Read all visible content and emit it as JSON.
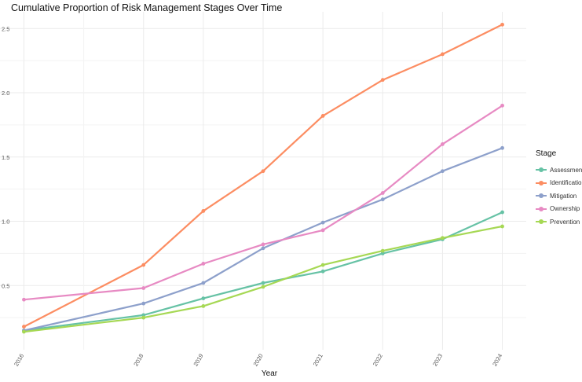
{
  "chart_data": {
    "type": "line",
    "title": "Cumulative Proportion of Risk Management Stages Over Time",
    "xlabel": "Year",
    "ylabel": "",
    "x": [
      2016,
      2018,
      2019,
      2020,
      2021,
      2022,
      2023,
      2024
    ],
    "x_tick_labels": [
      "2016",
      "2018",
      "2019",
      "2020",
      "2021",
      "2022",
      "2023",
      "2024"
    ],
    "y_tick_labels": [
      "0.5",
      "1.0",
      "1.5",
      "2.0",
      "2.5"
    ],
    "y_ticks": [
      0.5,
      1.0,
      1.5,
      2.0,
      2.5
    ],
    "ylim": [
      0.0,
      2.63
    ],
    "grid": true,
    "legend_title": "Stage",
    "legend_position": "right",
    "series": [
      {
        "name": "Assessment",
        "color": "#66c2a5",
        "values": [
          0.15,
          0.27,
          0.4,
          0.52,
          0.61,
          0.75,
          0.86,
          1.07
        ]
      },
      {
        "name": "Identification",
        "color": "#fc8d62",
        "values": [
          0.18,
          0.66,
          1.08,
          1.39,
          1.82,
          2.1,
          2.3,
          2.53
        ]
      },
      {
        "name": "Mitigation",
        "color": "#8da0cb",
        "values": [
          0.15,
          0.36,
          0.52,
          0.79,
          0.99,
          1.17,
          1.39,
          1.57
        ]
      },
      {
        "name": "Ownership",
        "color": "#e78ac3",
        "values": [
          0.39,
          0.48,
          0.67,
          0.82,
          0.93,
          1.22,
          1.6,
          1.9
        ]
      },
      {
        "name": "Prevention",
        "color": "#a6d854",
        "values": [
          0.14,
          0.25,
          0.34,
          0.49,
          0.66,
          0.77,
          0.87,
          0.96
        ]
      }
    ]
  }
}
